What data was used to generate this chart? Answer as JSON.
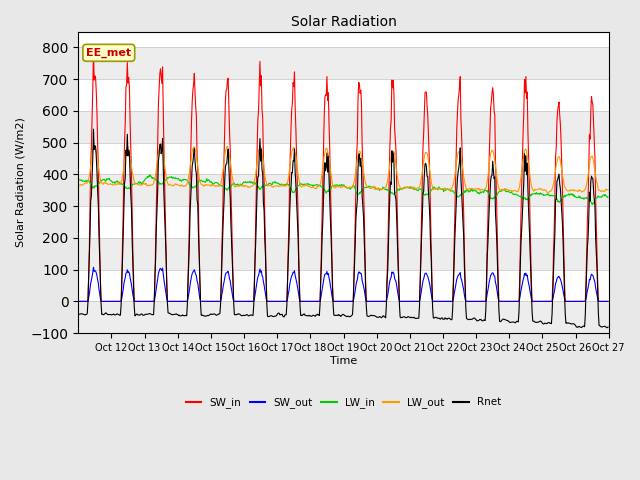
{
  "title": "Solar Radiation",
  "ylabel": "Solar Radiation (W/m2)",
  "xlabel": "Time",
  "ylim": [
    -100,
    850
  ],
  "yticks": [
    -100,
    0,
    100,
    200,
    300,
    400,
    500,
    600,
    700,
    800
  ],
  "fig_bg_color": "#e8e8e8",
  "plot_bg_color": "#ffffff",
  "legend_labels": [
    "SW_in",
    "SW_out",
    "LW_in",
    "LW_out",
    "Rnet"
  ],
  "legend_colors": [
    "#ff0000",
    "#0000ff",
    "#00cc00",
    "#ff9900",
    "#000000"
  ],
  "annotation_text": "EE_met",
  "annotation_bg": "#ffffcc",
  "annotation_border": "#999900",
  "x_tick_labels": [
    "Oct 12",
    "Oct 13",
    "Oct 14",
    "Oct 15",
    "Oct 16",
    "Oct 17",
    "Oct 18",
    "Oct 19",
    "Oct 20",
    "Oct 21",
    "Oct 22",
    "Oct 23",
    "Oct 24",
    "Oct 25",
    "Oct 26",
    "Oct 27"
  ],
  "n_days": 16,
  "n_points_per_day": 48,
  "figsize": [
    6.4,
    4.8
  ],
  "dpi": 100
}
